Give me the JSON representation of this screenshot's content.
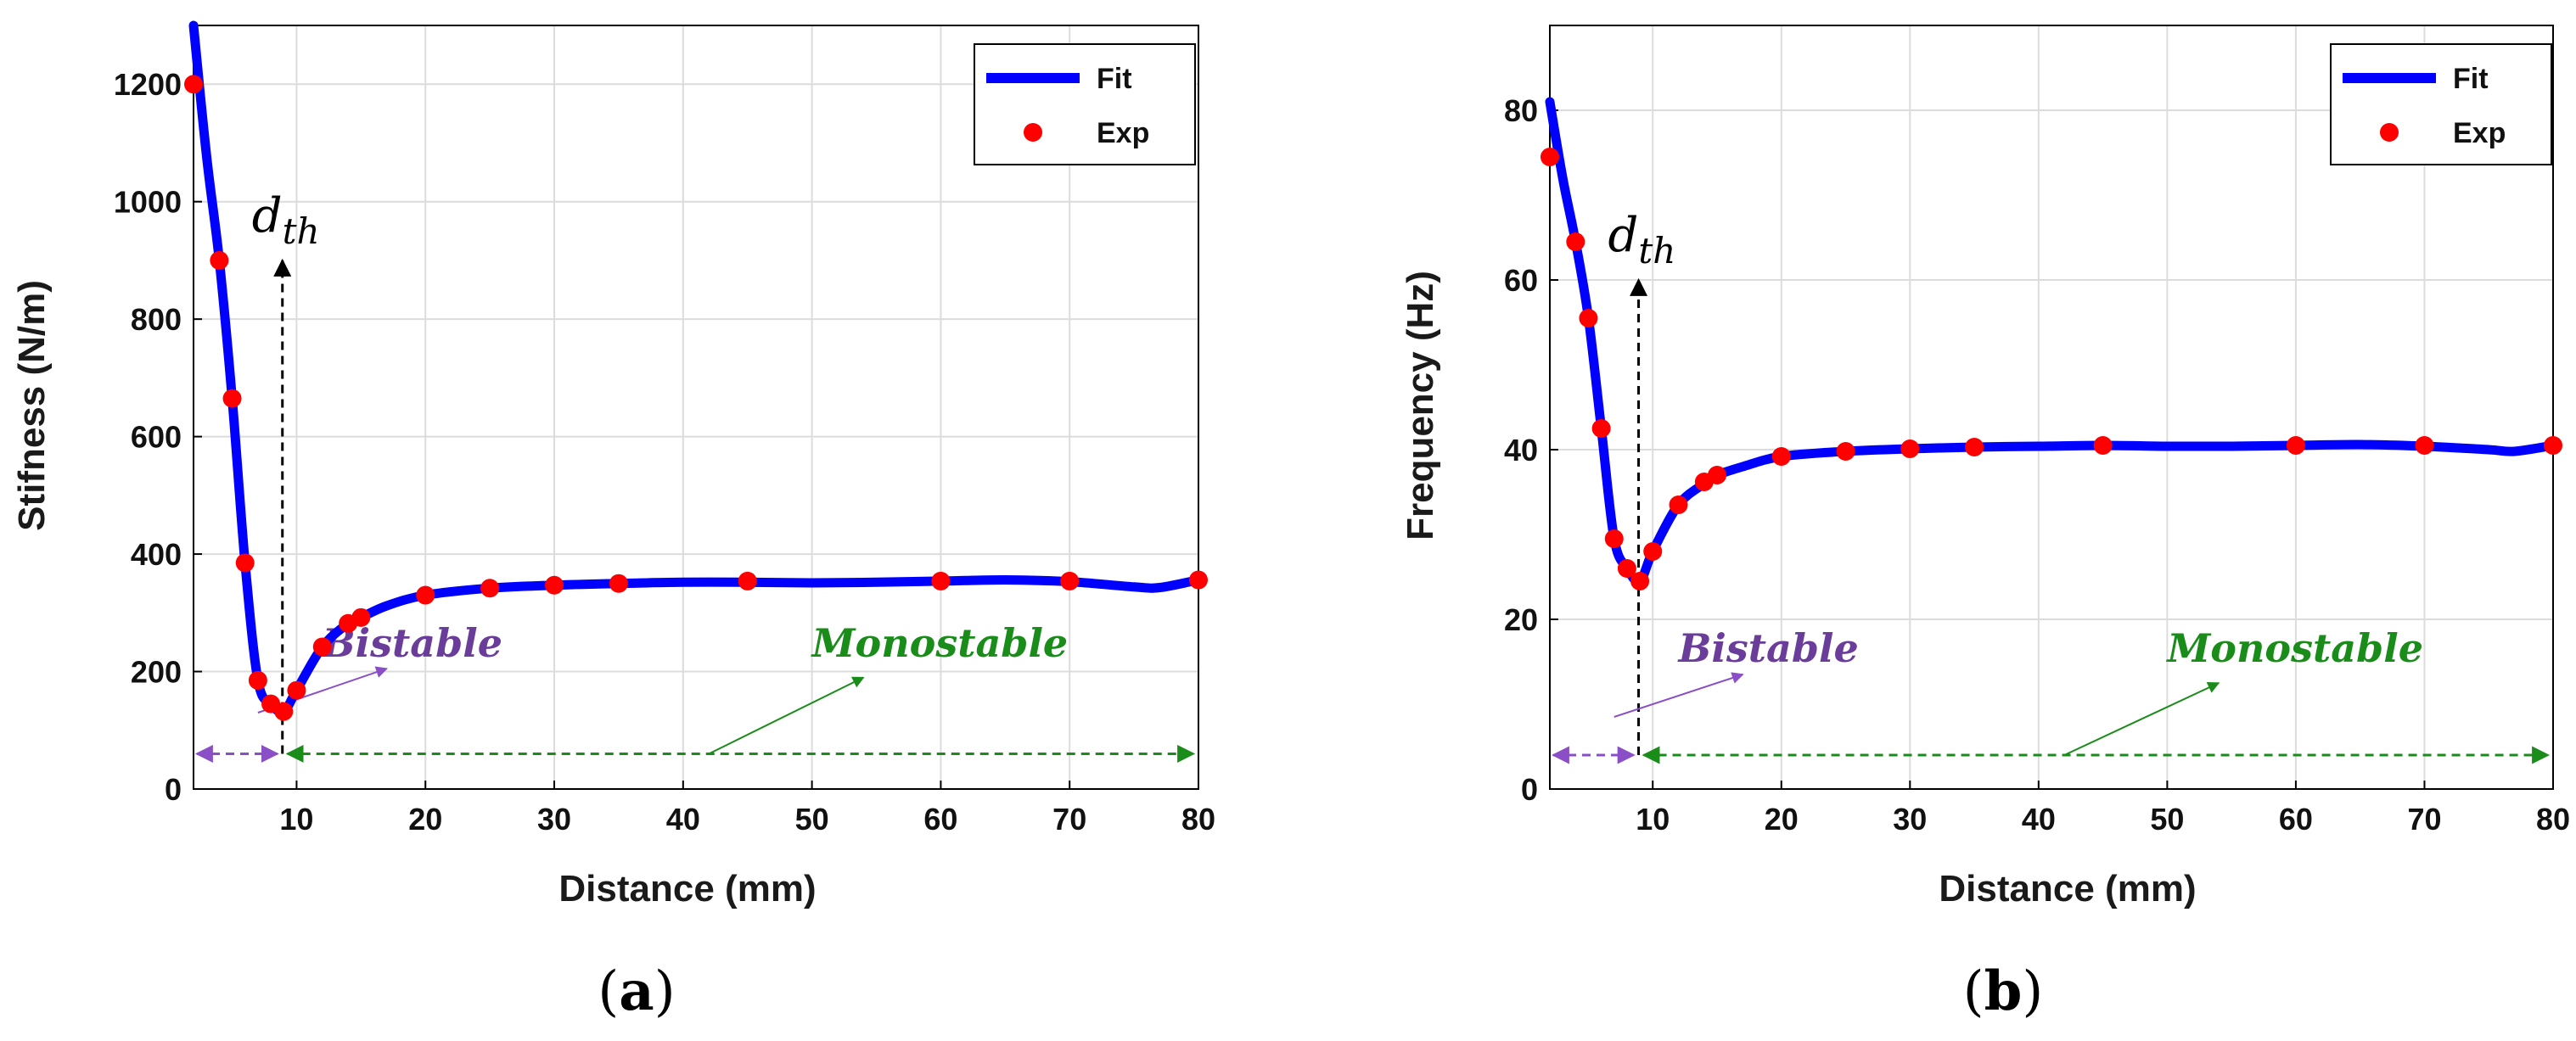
{
  "chart_data": [
    {
      "type": "line",
      "panel_label": "(a)",
      "panel_letter": "a",
      "xlabel": "Distance (mm)",
      "ylabel": "Stifness (N/m)",
      "xlim": [
        2,
        80
      ],
      "ylim": [
        0,
        1300
      ],
      "xticks": [
        10,
        20,
        30,
        40,
        50,
        60,
        70,
        80
      ],
      "yticks": [
        0,
        200,
        400,
        600,
        800,
        1000,
        1200
      ],
      "grid": true,
      "legend": {
        "position": "top-right",
        "entries": [
          "Fit",
          "Exp"
        ]
      },
      "series": [
        {
          "name": "Fit",
          "style": "line",
          "color": "#0000ff",
          "x": [
            2,
            3,
            4,
            5,
            6,
            7,
            8,
            9,
            10,
            12,
            14,
            15,
            17,
            20,
            25,
            30,
            35,
            40,
            45,
            50,
            55,
            60,
            65,
            70,
            75,
            77,
            80
          ],
          "y": [
            1320,
            1080,
            900,
            665,
            385,
            185,
            145,
            132,
            168,
            242,
            282,
            292,
            312,
            330,
            342,
            347,
            350,
            352,
            352,
            351,
            352,
            354,
            356,
            353,
            344,
            343,
            356
          ]
        },
        {
          "name": "Exp",
          "style": "markers",
          "color": "#ff0000",
          "x": [
            2,
            4,
            5,
            6,
            7,
            8,
            9,
            10,
            12,
            14,
            15,
            20,
            25,
            30,
            35,
            45,
            60,
            70,
            80
          ],
          "y": [
            1200,
            900,
            665,
            385,
            185,
            145,
            132,
            168,
            242,
            282,
            292,
            330,
            342,
            347,
            350,
            354,
            354,
            354,
            356
          ]
        }
      ],
      "annotations": {
        "threshold_label": "d_th",
        "threshold_base": "d",
        "threshold_sub": "th",
        "threshold_x": 8.9,
        "threshold_arrow_y": [
          60,
          900
        ],
        "bistable": {
          "label": "Bistable",
          "range": [
            2,
            8.9
          ],
          "arrow_y": 60,
          "label_x": 12,
          "label_y": 225,
          "pointer": [
            [
              7,
              130
            ],
            [
              17,
              205
            ]
          ]
        },
        "monostable": {
          "label": "Monostable",
          "range": [
            8.9,
            80
          ],
          "arrow_y": 60,
          "label_x": 50,
          "label_y": 225,
          "pointer": [
            [
              42,
              60
            ],
            [
              54,
              190
            ]
          ]
        }
      }
    },
    {
      "type": "line",
      "panel_label": "(b)",
      "panel_letter": "b",
      "xlabel": "Distance (mm)",
      "ylabel": "Frequency (Hz)",
      "xlim": [
        2,
        80
      ],
      "ylim": [
        0,
        90
      ],
      "xticks": [
        10,
        20,
        30,
        40,
        50,
        60,
        70,
        80
      ],
      "yticks": [
        0,
        20,
        40,
        60,
        80
      ],
      "grid": true,
      "legend": {
        "position": "top-right",
        "entries": [
          "Fit",
          "Exp"
        ]
      },
      "series": [
        {
          "name": "Fit",
          "style": "line",
          "color": "#0000ff",
          "x": [
            2,
            3,
            4,
            5,
            6,
            7,
            8,
            9,
            10,
            12,
            14,
            15,
            17,
            20,
            25,
            30,
            35,
            40,
            45,
            50,
            55,
            60,
            65,
            70,
            75,
            77,
            80
          ],
          "y": [
            81,
            72,
            64.5,
            55.5,
            42.5,
            29.5,
            26,
            24.5,
            28,
            33.5,
            36,
            37,
            38,
            39.2,
            39.8,
            40.1,
            40.3,
            40.4,
            40.5,
            40.4,
            40.4,
            40.5,
            40.6,
            40.4,
            40,
            39.8,
            40.5
          ]
        },
        {
          "name": "Exp",
          "style": "markers",
          "color": "#ff0000",
          "x": [
            2,
            4,
            5,
            6,
            7,
            8,
            9,
            10,
            12,
            14,
            15,
            20,
            25,
            30,
            35,
            45,
            60,
            70,
            80
          ],
          "y": [
            74.5,
            64.5,
            55.5,
            42.5,
            29.5,
            26,
            24.5,
            28,
            33.5,
            36.2,
            37,
            39.2,
            39.8,
            40.1,
            40.3,
            40.5,
            40.5,
            40.5,
            40.5
          ]
        }
      ],
      "annotations": {
        "threshold_label": "d_th",
        "threshold_base": "d",
        "threshold_sub": "th",
        "threshold_x": 8.9,
        "threshold_arrow_y": [
          4,
          60
        ],
        "bistable": {
          "label": "Bistable",
          "range": [
            2,
            8.9
          ],
          "arrow_y": 4,
          "label_x": 12,
          "label_y": 15,
          "pointer": [
            [
              7,
              8.5
            ],
            [
              17,
              13.5
            ]
          ]
        },
        "monostable": {
          "label": "Monostable",
          "range": [
            8.9,
            80
          ],
          "arrow_y": 4,
          "label_x": 50,
          "label_y": 15,
          "pointer": [
            [
              42,
              4
            ],
            [
              54,
              12.5
            ]
          ]
        }
      }
    }
  ],
  "colors": {
    "fit": "#0000ff",
    "exp": "#ff0000",
    "bistable": "#6a3d9a",
    "bistable_arrow": "#8a4fc7",
    "monostable": "#1a8c1a",
    "grid": "#dcdcdc"
  }
}
